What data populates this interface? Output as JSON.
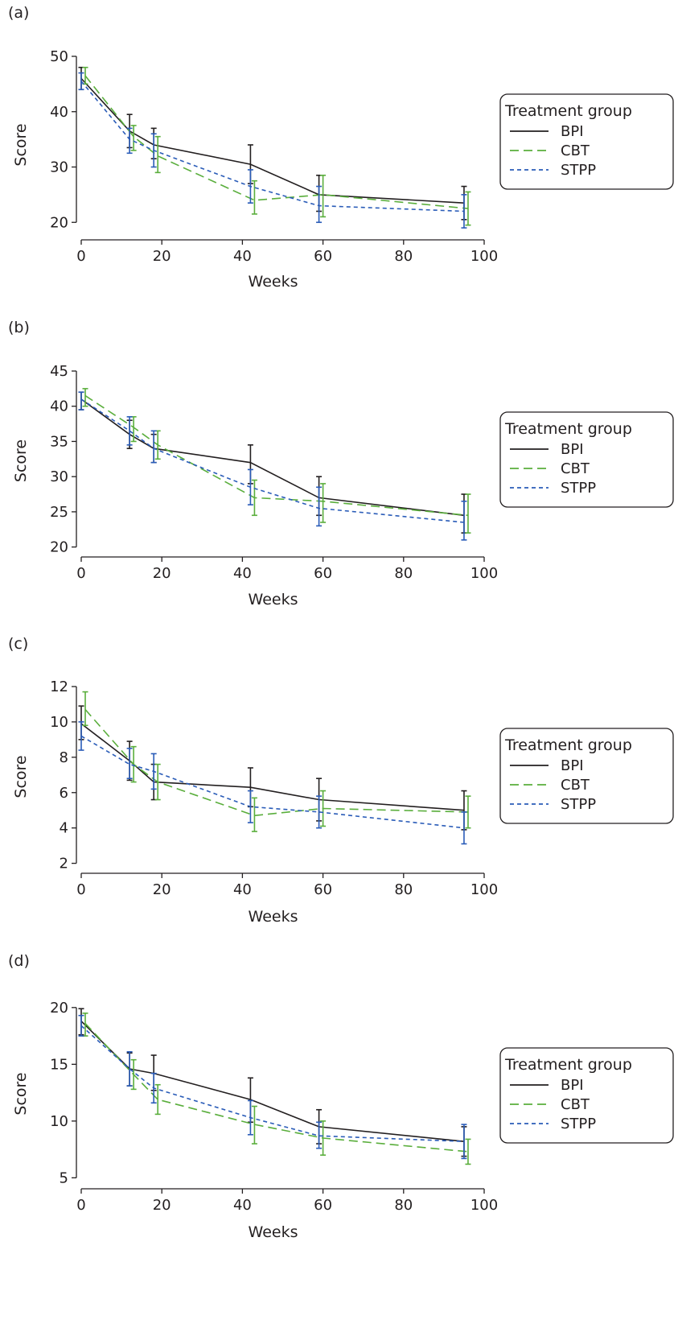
{
  "legend_title": "Treatment group",
  "series_colors": {
    "BPI": "#231f20",
    "CBT": "#5aae3c",
    "STPP": "#2a5cb8"
  },
  "chart_data": [
    {
      "type": "line",
      "panel": "(a)",
      "xlabel": "Weeks",
      "ylabel": "Score",
      "xlim": [
        0,
        100
      ],
      "ylim": [
        18,
        50
      ],
      "xticks": [
        0,
        20,
        40,
        60,
        80,
        100
      ],
      "yticks": [
        20,
        30,
        40,
        50
      ],
      "legend_position": "right",
      "series": [
        {
          "name": "BPI",
          "x": [
            0,
            12,
            18,
            42,
            59,
            95
          ],
          "y": [
            46.0,
            36.5,
            34.0,
            30.5,
            25.0,
            23.5
          ],
          "err_low": [
            44.0,
            33.5,
            31.5,
            27.0,
            22.0,
            20.5
          ],
          "err_high": [
            48.0,
            39.5,
            37.0,
            34.0,
            28.5,
            26.5
          ]
        },
        {
          "name": "CBT",
          "x": [
            1,
            13,
            19,
            43,
            60,
            96
          ],
          "y": [
            46.5,
            35.5,
            32.0,
            24.0,
            25.0,
            22.5
          ],
          "err_low": [
            45.0,
            33.0,
            29.0,
            21.5,
            21.0,
            19.5
          ],
          "err_high": [
            48.0,
            37.5,
            35.5,
            27.5,
            28.5,
            25.5
          ]
        },
        {
          "name": "STPP",
          "x": [
            0,
            12,
            18,
            42,
            59,
            95
          ],
          "y": [
            45.5,
            35.0,
            33.0,
            26.5,
            23.0,
            22.0
          ],
          "err_low": [
            44.0,
            32.5,
            30.0,
            23.5,
            20.0,
            19.0
          ],
          "err_high": [
            47.0,
            37.0,
            36.0,
            29.5,
            26.5,
            25.0
          ]
        }
      ]
    },
    {
      "type": "line",
      "panel": "(b)",
      "xlabel": "Weeks",
      "ylabel": "Score",
      "xlim": [
        0,
        100
      ],
      "ylim": [
        19.5,
        45
      ],
      "xticks": [
        0,
        20,
        40,
        60,
        80,
        100
      ],
      "yticks": [
        20,
        25,
        30,
        35,
        40,
        45
      ],
      "legend_position": "right",
      "series": [
        {
          "name": "BPI",
          "x": [
            0,
            12,
            18,
            42,
            59,
            95
          ],
          "y": [
            41.0,
            36.0,
            34.0,
            32.0,
            27.0,
            24.5
          ],
          "err_low": [
            39.5,
            34.0,
            32.0,
            29.0,
            24.5,
            22.0
          ],
          "err_high": [
            42.0,
            38.0,
            36.0,
            34.5,
            30.0,
            27.5
          ]
        },
        {
          "name": "CBT",
          "x": [
            1,
            13,
            19,
            43,
            60,
            96
          ],
          "y": [
            41.5,
            37.0,
            34.5,
            27.0,
            26.5,
            24.5
          ],
          "err_low": [
            40.0,
            35.0,
            32.5,
            24.5,
            23.5,
            22.0
          ],
          "err_high": [
            42.5,
            38.5,
            36.5,
            29.5,
            29.0,
            27.5
          ]
        },
        {
          "name": "STPP",
          "x": [
            0,
            12,
            18,
            42,
            59,
            95
          ],
          "y": [
            41.0,
            36.5,
            34.0,
            28.5,
            25.5,
            23.5
          ],
          "err_low": [
            39.5,
            34.5,
            32.0,
            26.0,
            23.0,
            21.0
          ],
          "err_high": [
            42.0,
            38.5,
            36.5,
            31.0,
            28.5,
            26.5
          ]
        }
      ]
    },
    {
      "type": "line",
      "panel": "(c)",
      "xlabel": "Weeks",
      "ylabel": "Score",
      "xlim": [
        0,
        100
      ],
      "ylim": [
        1.8,
        12
      ],
      "xticks": [
        0,
        20,
        40,
        60,
        80,
        100
      ],
      "yticks": [
        2,
        4,
        6,
        8,
        10,
        12
      ],
      "legend_position": "right",
      "series": [
        {
          "name": "BPI",
          "x": [
            0,
            12,
            18,
            42,
            59,
            95
          ],
          "y": [
            9.9,
            7.8,
            6.6,
            6.3,
            5.6,
            5.0
          ],
          "err_low": [
            9.0,
            6.7,
            5.6,
            5.2,
            4.4,
            3.9
          ],
          "err_high": [
            10.9,
            8.9,
            7.6,
            7.4,
            6.8,
            6.1
          ]
        },
        {
          "name": "CBT",
          "x": [
            1,
            13,
            19,
            43,
            60,
            96
          ],
          "y": [
            10.7,
            7.6,
            6.6,
            4.7,
            5.1,
            4.9
          ],
          "err_low": [
            9.8,
            6.6,
            5.6,
            3.8,
            4.1,
            4.0
          ],
          "err_high": [
            11.7,
            8.6,
            7.6,
            5.7,
            6.1,
            5.8
          ]
        },
        {
          "name": "STPP",
          "x": [
            0,
            12,
            18,
            42,
            59,
            95
          ],
          "y": [
            9.2,
            7.6,
            7.2,
            5.2,
            4.9,
            4.0
          ],
          "err_low": [
            8.4,
            6.8,
            6.2,
            4.3,
            4.0,
            3.1
          ],
          "err_high": [
            10.0,
            8.5,
            8.2,
            6.1,
            5.8,
            4.9
          ]
        }
      ]
    },
    {
      "type": "line",
      "panel": "(d)",
      "xlabel": "Weeks",
      "ylabel": "Score",
      "xlim": [
        0,
        100
      ],
      "ylim": [
        4.6,
        20.2
      ],
      "xticks": [
        0,
        20,
        40,
        60,
        80,
        100
      ],
      "yticks": [
        5,
        10,
        15,
        20
      ],
      "legend_position": "right",
      "series": [
        {
          "name": "BPI",
          "x": [
            0,
            12,
            18,
            42,
            59,
            95
          ],
          "y": [
            18.8,
            14.6,
            14.2,
            11.9,
            9.5,
            8.2
          ],
          "err_low": [
            17.6,
            13.1,
            12.7,
            9.9,
            8.0,
            6.9
          ],
          "err_high": [
            19.9,
            16.0,
            15.8,
            13.8,
            11.0,
            9.5
          ]
        },
        {
          "name": "CBT",
          "x": [
            1,
            13,
            19,
            43,
            60,
            96
          ],
          "y": [
            18.6,
            14.1,
            11.9,
            9.7,
            8.5,
            7.3
          ],
          "err_low": [
            17.5,
            12.8,
            10.6,
            8.0,
            7.0,
            6.2
          ],
          "err_high": [
            19.5,
            15.4,
            13.2,
            11.3,
            10.0,
            8.4
          ]
        },
        {
          "name": "STPP",
          "x": [
            0,
            12,
            18,
            42,
            59,
            95
          ],
          "y": [
            18.4,
            14.6,
            12.9,
            10.3,
            8.7,
            8.2
          ],
          "err_low": [
            17.5,
            13.1,
            11.6,
            8.8,
            7.6,
            6.7
          ],
          "err_high": [
            19.3,
            16.1,
            14.2,
            11.8,
            9.9,
            9.7
          ]
        }
      ]
    }
  ]
}
